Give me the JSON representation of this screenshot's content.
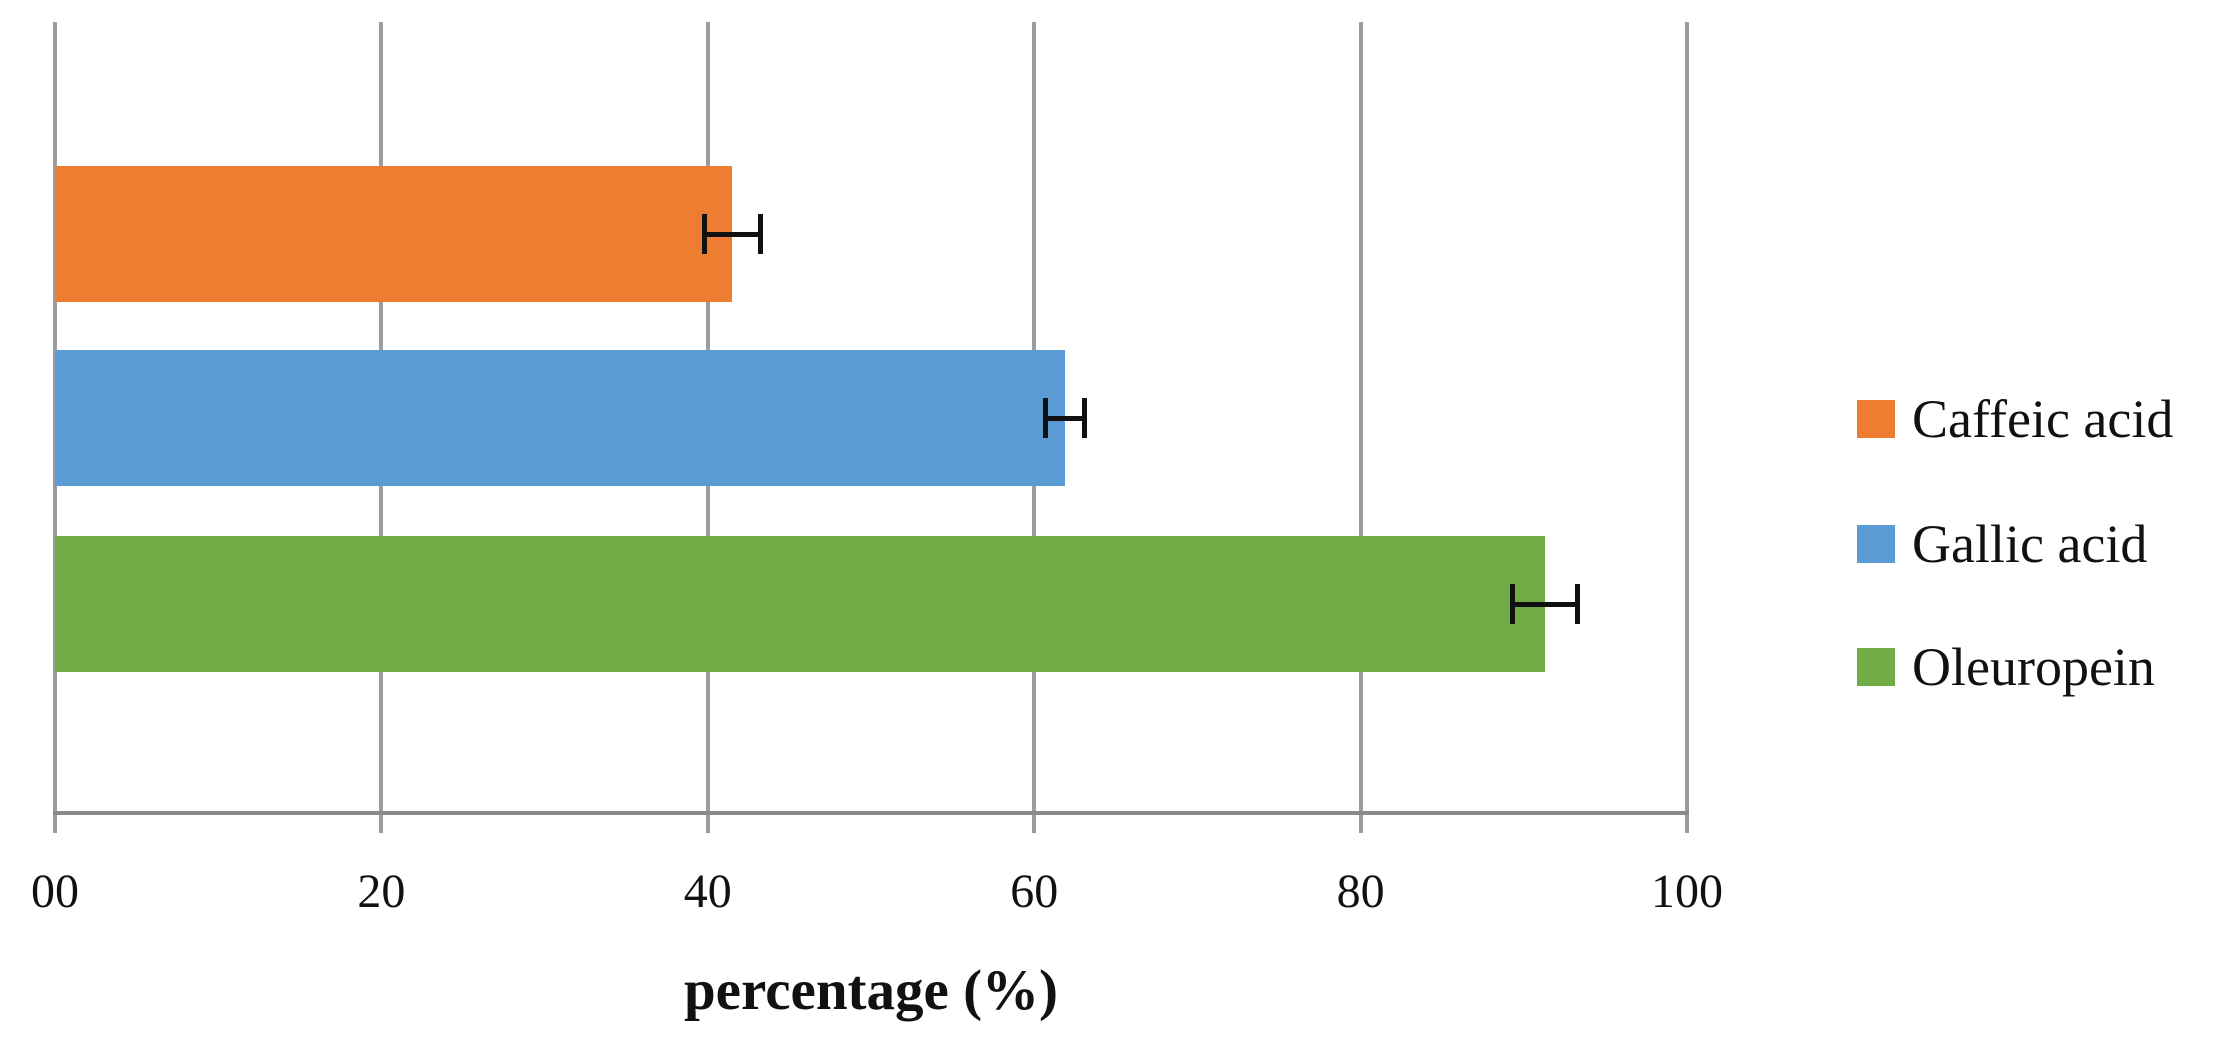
{
  "chart_data": {
    "type": "bar",
    "orientation": "horizontal",
    "title": "",
    "xlabel": "percentage (%)",
    "ylabel": "",
    "xlim": [
      0,
      100
    ],
    "grid": "vertical-only",
    "legend_position": "right",
    "error_bars": true,
    "series": [
      {
        "name": "Caffeic acid",
        "value": 41.5,
        "error": 1.7,
        "color": "#ED7D31"
      },
      {
        "name": "Gallic acid",
        "value": 61.9,
        "error": 1.2,
        "color": "#5B9BD5"
      },
      {
        "name": "Oleuropein",
        "value": 91.3,
        "error": 2.0,
        "color": "#70AD47"
      }
    ],
    "x_ticks": [
      {
        "value": 0,
        "label": "00"
      },
      {
        "value": 20,
        "label": "20"
      },
      {
        "value": 40,
        "label": "40"
      },
      {
        "value": 60,
        "label": "60"
      },
      {
        "value": 80,
        "label": "80"
      },
      {
        "value": 100,
        "label": "100"
      }
    ],
    "colors": {
      "gridline": "#9C9C9C",
      "axis_line": "#8A8A8A",
      "error_bar": "#111111",
      "text": "#111111",
      "background": "#FFFFFF"
    }
  }
}
